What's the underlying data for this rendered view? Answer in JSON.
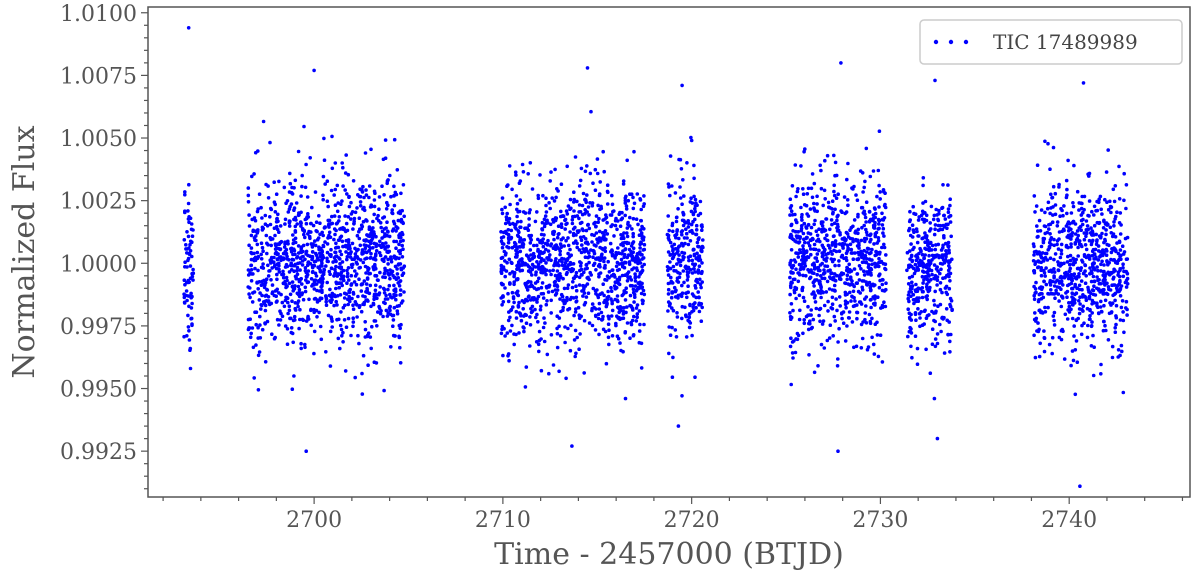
{
  "chart_data": {
    "type": "scatter",
    "xlabel": "Time - 2457000 (BTJD)",
    "ylabel": "Normalized Flux",
    "xlim": [
      2691.2,
      2746.4
    ],
    "ylim": [
      0.99067,
      1.01023
    ],
    "xticks": [
      2700,
      2710,
      2720,
      2730,
      2740
    ],
    "xtick_labels": [
      "2700",
      "2710",
      "2720",
      "2730",
      "2740"
    ],
    "x_minor_step": 2,
    "yticks": [
      0.9925,
      0.995,
      0.9975,
      1.0,
      1.0025,
      1.005,
      1.0075,
      1.01
    ],
    "ytick_labels": [
      "0.9925",
      "0.9950",
      "0.9975",
      "1.0000",
      "1.0025",
      "1.0050",
      "1.0075",
      "1.0100"
    ],
    "y_minor_step": 0.0005,
    "grid": false,
    "legend_position": "top-right",
    "series": [
      {
        "name": "TIC 17489989",
        "color": "#0000ff",
        "marker": "dot",
        "segments": [
          {
            "x_start": 2693.1,
            "x_end": 2693.6,
            "center": 0.99995,
            "sigma": 0.0019,
            "y_min": 0.9958,
            "y_max": 1.0094
          },
          {
            "x_start": 2696.5,
            "x_end": 2704.8,
            "center": 1.0001,
            "sigma": 0.002,
            "y_min": 0.9925,
            "y_max": 1.0077
          },
          {
            "x_start": 2709.9,
            "x_end": 2717.5,
            "center": 1.0,
            "sigma": 0.002,
            "y_min": 0.9927,
            "y_max": 1.0078
          },
          {
            "x_start": 2718.7,
            "x_end": 2720.6,
            "center": 1.0,
            "sigma": 0.002,
            "y_min": 0.9935,
            "y_max": 1.0071
          },
          {
            "x_start": 2725.2,
            "x_end": 2730.3,
            "center": 1.0,
            "sigma": 0.002,
            "y_min": 0.9925,
            "y_max": 1.008
          },
          {
            "x_start": 2731.4,
            "x_end": 2733.8,
            "center": 0.9999,
            "sigma": 0.0019,
            "y_min": 0.993,
            "y_max": 1.0073
          },
          {
            "x_start": 2738.1,
            "x_end": 2743.1,
            "center": 0.9999,
            "sigma": 0.002,
            "y_min": 0.9911,
            "y_max": 1.0072
          }
        ]
      }
    ]
  }
}
